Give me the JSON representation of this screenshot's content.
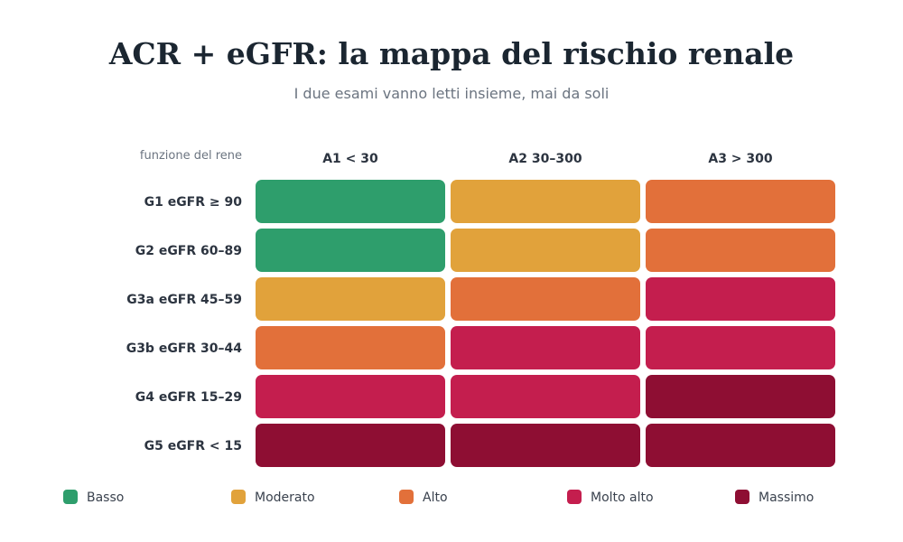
{
  "chart_data": {
    "type": "heatmap",
    "title": "ACR + eGFR: la mappa del rischio renale",
    "subtitle": "I due esami vanno letti insieme, mai da soli",
    "row_axis_label": "funzione del rene",
    "columns": [
      "A1 < 30",
      "A2 30–300",
      "A3 > 300"
    ],
    "rows": [
      "G1 eGFR ≥ 90",
      "G2 eGFR 60–89",
      "G3a eGFR 45–59",
      "G3b eGFR 30–44",
      "G4 eGFR 15–29",
      "G5 eGFR < 15"
    ],
    "values": [
      [
        "Basso",
        "Moderato",
        "Alto"
      ],
      [
        "Basso",
        "Moderato",
        "Alto"
      ],
      [
        "Moderato",
        "Alto",
        "Molto alto"
      ],
      [
        "Alto",
        "Molto alto",
        "Molto alto"
      ],
      [
        "Molto alto",
        "Molto alto",
        "Massimo"
      ],
      [
        "Massimo",
        "Massimo",
        "Massimo"
      ]
    ],
    "legend": [
      {
        "label": "Basso",
        "color": "#2e9e6c"
      },
      {
        "label": "Moderato",
        "color": "#e1a23b"
      },
      {
        "label": "Alto",
        "color": "#e2703a"
      },
      {
        "label": "Molto alto",
        "color": "#c41e4e"
      },
      {
        "label": "Massimo",
        "color": "#8e0e33"
      }
    ],
    "legend_placement": "bottom"
  }
}
